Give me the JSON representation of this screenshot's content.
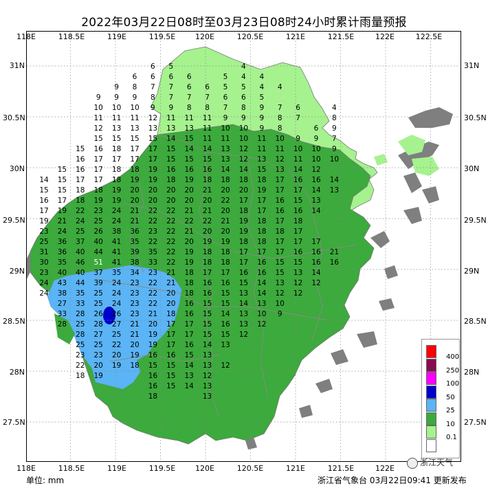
{
  "title": "2022年03月22日08时至03月23日08时24小时累计雨量预报",
  "lon_labels": [
    "118E",
    "118.5E",
    "119E",
    "119.5E",
    "120E",
    "120.5E",
    "121E",
    "121.5E",
    "122E",
    "122.5E"
  ],
  "lat_labels": [
    "31N",
    "30.5N",
    "30N",
    "29.5N",
    "29N",
    "28.5N",
    "28N",
    "27.5N"
  ],
  "units_label": "单位: mm",
  "publisher": "浙江省气象台 03月22日09:41 更新发布",
  "watermark": "浙江天气",
  "legend": [
    {
      "label": "400",
      "color": "#ff0000"
    },
    {
      "label": "250",
      "color": "#8b0a50"
    },
    {
      "label": "100",
      "color": "#ff00ff"
    },
    {
      "label": "50",
      "color": "#0000cc"
    },
    {
      "label": "25",
      "color": "#5ab4f5"
    },
    {
      "label": "10",
      "color": "#3caa3c"
    },
    {
      "label": "0.1",
      "color": "#a6f28f"
    },
    {
      "label": "",
      "color": "#ffffff"
    }
  ],
  "colors": {
    "land_gray": "#7f7f7f",
    "border": "#8a8a8a"
  },
  "grid_values": [
    {
      "row": 0,
      "vals": [
        null,
        null,
        null,
        null,
        null,
        null,
        null,
        null,
        null,
        null,
        null,
        null,
        null,
        null,
        null,
        null,
        null
      ]
    },
    {
      "row": 1,
      "vals": [
        null,
        null,
        null,
        null,
        null,
        null,
        6,
        5,
        null,
        null,
        null,
        4,
        null,
        null,
        null,
        null,
        null
      ]
    },
    {
      "row": 2,
      "vals": [
        null,
        null,
        null,
        null,
        null,
        6,
        6,
        6,
        6,
        null,
        5,
        4,
        4,
        null,
        null,
        null,
        null
      ]
    },
    {
      "row": 3,
      "vals": [
        null,
        null,
        null,
        null,
        9,
        8,
        7,
        7,
        6,
        6,
        5,
        5,
        4,
        4,
        null,
        null,
        null
      ]
    },
    {
      "row": 4,
      "vals": [
        null,
        null,
        null,
        9,
        9,
        9,
        8,
        7,
        7,
        7,
        6,
        6,
        5,
        null,
        null,
        null,
        null
      ]
    },
    {
      "row": 5,
      "vals": [
        null,
        null,
        null,
        10,
        10,
        10,
        9,
        9,
        8,
        8,
        7,
        8,
        9,
        7,
        6,
        null,
        4
      ]
    },
    {
      "row": 6,
      "vals": [
        null,
        null,
        null,
        11,
        11,
        11,
        12,
        11,
        11,
        11,
        9,
        9,
        9,
        8,
        7,
        null,
        8
      ]
    },
    {
      "row": 7,
      "vals": [
        null,
        null,
        null,
        12,
        13,
        13,
        13,
        13,
        13,
        11,
        10,
        10,
        9,
        8,
        null,
        6,
        9
      ]
    },
    {
      "row": 8,
      "vals": [
        null,
        null,
        null,
        15,
        15,
        15,
        15,
        14,
        15,
        11,
        11,
        10,
        11,
        10,
        9,
        9,
        7
      ]
    },
    {
      "row": 9,
      "vals": [
        null,
        null,
        15,
        16,
        18,
        17,
        17,
        15,
        14,
        14,
        13,
        12,
        11,
        11,
        10,
        10,
        9
      ]
    },
    {
      "row": 10,
      "vals": [
        null,
        null,
        16,
        17,
        17,
        17,
        17,
        15,
        15,
        15,
        13,
        12,
        13,
        12,
        11,
        10,
        10
      ]
    },
    {
      "row": 11,
      "vals": [
        null,
        15,
        16,
        17,
        18,
        18,
        19,
        16,
        16,
        16,
        14,
        14,
        15,
        13,
        14,
        12,
        null
      ]
    },
    {
      "row": 12,
      "vals": [
        14,
        15,
        17,
        17,
        18,
        19,
        19,
        18,
        19,
        18,
        18,
        18,
        18,
        17,
        16,
        16,
        14
      ]
    },
    {
      "row": 13,
      "vals": [
        15,
        15,
        18,
        18,
        19,
        20,
        20,
        20,
        20,
        21,
        20,
        20,
        19,
        17,
        17,
        14,
        13
      ]
    },
    {
      "row": 14,
      "vals": [
        16,
        17,
        18,
        19,
        19,
        20,
        20,
        20,
        20,
        20,
        22,
        17,
        17,
        16,
        15,
        13,
        null
      ]
    },
    {
      "row": 15,
      "vals": [
        17,
        19,
        22,
        23,
        24,
        21,
        22,
        22,
        21,
        21,
        20,
        18,
        17,
        16,
        16,
        14,
        null
      ]
    },
    {
      "row": 16,
      "vals": [
        19,
        21,
        24,
        25,
        24,
        21,
        22,
        22,
        22,
        22,
        21,
        19,
        18,
        17,
        18,
        null,
        null
      ]
    },
    {
      "row": 17,
      "vals": [
        23,
        24,
        25,
        26,
        38,
        36,
        23,
        22,
        21,
        20,
        20,
        19,
        18,
        18,
        17,
        null,
        null
      ]
    },
    {
      "row": 18,
      "vals": [
        25,
        36,
        37,
        40,
        41,
        35,
        22,
        22,
        20,
        19,
        19,
        18,
        18,
        17,
        17,
        17,
        null
      ]
    },
    {
      "row": 19,
      "vals": [
        31,
        36,
        40,
        44,
        41,
        39,
        35,
        22,
        19,
        18,
        18,
        17,
        17,
        17,
        16,
        16,
        21
      ]
    },
    {
      "row": 20,
      "vals": [
        30,
        35,
        46,
        51,
        41,
        38,
        33,
        22,
        19,
        18,
        18,
        17,
        16,
        15,
        15,
        16,
        16
      ]
    },
    {
      "row": 21,
      "vals": [
        23,
        40,
        40,
        37,
        35,
        34,
        23,
        21,
        18,
        17,
        17,
        16,
        16,
        15,
        13,
        14,
        null
      ]
    },
    {
      "row": 22,
      "vals": [
        24,
        43,
        44,
        39,
        24,
        23,
        22,
        21,
        18,
        16,
        16,
        15,
        14,
        13,
        12,
        12,
        null
      ]
    },
    {
      "row": 23,
      "vals": [
        24,
        38,
        35,
        25,
        24,
        23,
        22,
        20,
        18,
        16,
        15,
        13,
        14,
        12,
        12,
        null,
        null
      ]
    },
    {
      "row": 24,
      "vals": [
        null,
        27,
        33,
        25,
        24,
        23,
        22,
        20,
        16,
        15,
        15,
        14,
        13,
        10,
        null,
        null,
        null
      ]
    },
    {
      "row": 25,
      "vals": [
        null,
        33,
        28,
        26,
        26,
        23,
        21,
        18,
        16,
        15,
        14,
        13,
        10,
        9,
        null,
        null,
        null
      ]
    },
    {
      "row": 26,
      "vals": [
        null,
        28,
        25,
        28,
        27,
        21,
        20,
        17,
        17,
        15,
        16,
        13,
        12,
        null,
        null,
        null,
        null
      ]
    },
    {
      "row": 27,
      "vals": [
        null,
        null,
        28,
        27,
        25,
        21,
        19,
        17,
        17,
        15,
        15,
        12,
        null,
        null,
        null,
        null,
        null
      ]
    },
    {
      "row": 28,
      "vals": [
        null,
        null,
        25,
        25,
        22,
        20,
        19,
        17,
        16,
        14,
        13,
        null,
        null,
        null,
        null,
        null,
        null
      ]
    },
    {
      "row": 29,
      "vals": [
        null,
        null,
        23,
        23,
        20,
        19,
        16,
        16,
        15,
        13,
        null,
        null,
        null,
        null,
        null,
        null,
        null
      ]
    },
    {
      "row": 30,
      "vals": [
        null,
        null,
        22,
        20,
        19,
        18,
        15,
        15,
        14,
        13,
        12,
        null,
        null,
        null,
        null,
        null,
        null
      ]
    },
    {
      "row": 31,
      "vals": [
        null,
        null,
        18,
        19,
        null,
        null,
        16,
        15,
        13,
        12,
        null,
        null,
        null,
        null,
        null,
        null,
        null
      ]
    },
    {
      "row": 32,
      "vals": [
        null,
        null,
        null,
        null,
        null,
        null,
        16,
        15,
        14,
        13,
        null,
        null,
        null,
        null,
        null,
        null,
        null
      ]
    },
    {
      "row": 33,
      "vals": [
        null,
        null,
        null,
        null,
        null,
        null,
        18,
        null,
        null,
        13,
        null,
        null,
        null,
        null,
        null,
        null,
        null
      ]
    }
  ]
}
